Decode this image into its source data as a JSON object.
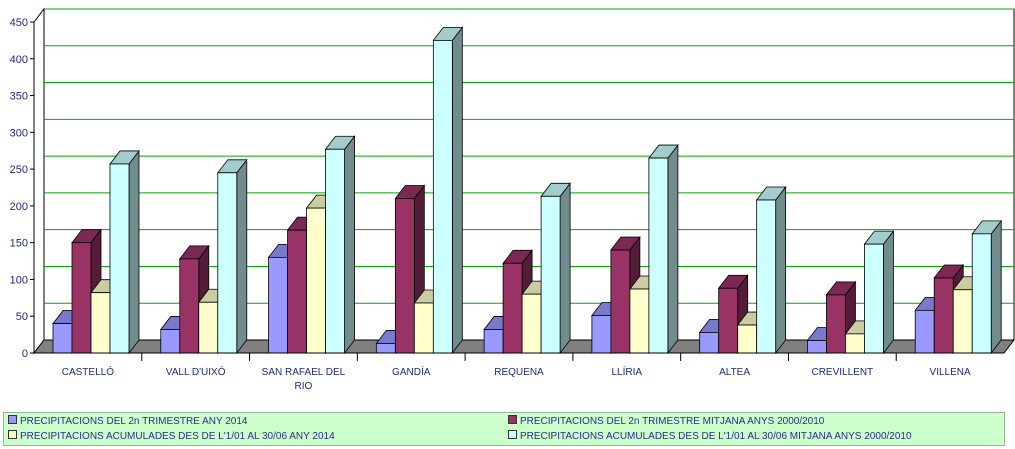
{
  "chart_data": {
    "type": "bar",
    "categories": [
      "CASTELLÓ",
      "VALL D'UIXÓ",
      "SAN RAFAEL DEL RIO",
      "GANDÍA",
      "REQUENA",
      "LLÍRIA",
      "ALTEA",
      "CREVILLENT",
      "VILLENA"
    ],
    "category_lines": [
      [
        "CASTELLÓ"
      ],
      [
        "VALL D'UIXÓ"
      ],
      [
        "SAN RAFAEL DEL",
        "RIO"
      ],
      [
        "GANDÍA"
      ],
      [
        "REQUENA"
      ],
      [
        "LLÍRIA"
      ],
      [
        "ALTEA"
      ],
      [
        "CREVILLENT"
      ],
      [
        "VILLENA"
      ]
    ],
    "series": [
      {
        "name": "PRECIPITACIONS DEL 2n TRIMESTRE ANY 2014",
        "color": "#9999ff",
        "values": [
          40,
          32,
          130,
          13,
          32,
          51,
          28,
          17,
          58
        ]
      },
      {
        "name": "PRECIPITACIONS DEL 2n TRIMESTRE MITJANA ANYS 2000/2010",
        "color": "#993366",
        "values": [
          150,
          128,
          167,
          210,
          122,
          140,
          88,
          79,
          102
        ]
      },
      {
        "name": "PRECIPITACIONS ACUMULADES DES DE L'1/01 AL 30/06 ANY 2014",
        "color": "#ffffcc",
        "values": [
          82,
          69,
          197,
          68,
          80,
          87,
          38,
          26,
          86
        ]
      },
      {
        "name": "PRECIPITACIONS ACUMULADES DES DE L'1/01 AL 30/06 MITJANA ANYS 2000/2010",
        "color": "#ccffff",
        "values": [
          257,
          245,
          277,
          425,
          213,
          265,
          208,
          148,
          162
        ]
      }
    ],
    "y_ticks": [
      "0",
      "50",
      "100",
      "150",
      "200",
      "250",
      "300",
      "350",
      "400",
      "450"
    ],
    "ylim": [
      0,
      450
    ],
    "grid": true,
    "legend_position": "bottom"
  }
}
